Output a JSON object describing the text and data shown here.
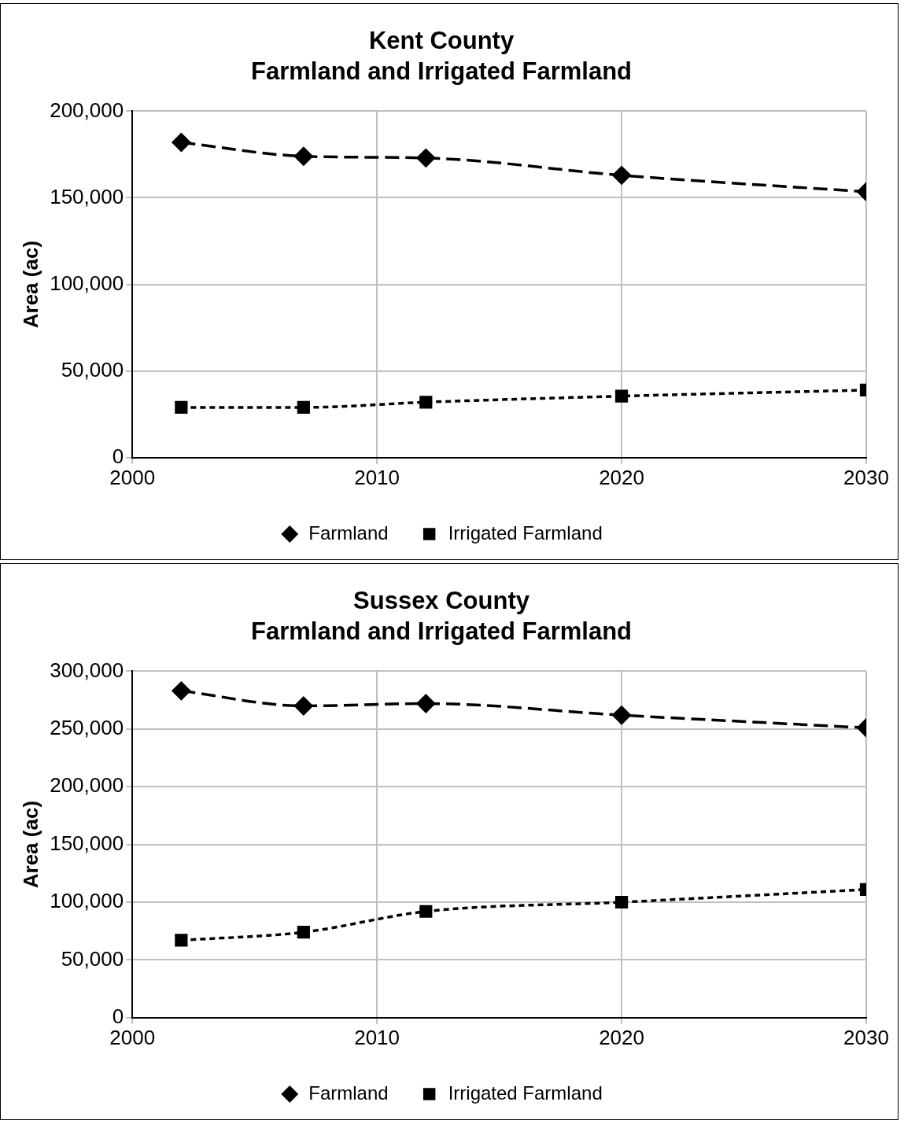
{
  "chart_data": [
    {
      "type": "line",
      "title": "Kent County",
      "subtitle": "Farmland and Irrigated Farmland",
      "ylabel": "Area (ac)",
      "x": [
        2002,
        2007,
        2012,
        2020,
        2030
      ],
      "xlim": [
        2000,
        2030
      ],
      "xticks": [
        2000,
        2010,
        2020,
        2030
      ],
      "ylim": [
        0,
        200000
      ],
      "yticks": [
        {
          "value": 0,
          "label": "0"
        },
        {
          "value": 50000,
          "label": "50,000"
        },
        {
          "value": 100000,
          "label": "100,000"
        },
        {
          "value": 150000,
          "label": "150,000"
        },
        {
          "value": 200000,
          "label": "200,000"
        }
      ],
      "grid": true,
      "legend": "bottom",
      "series": [
        {
          "name": "Farmland",
          "color": "#000000",
          "values": [
            182000,
            174000,
            173000,
            163000,
            153500
          ],
          "marker": "diamond",
          "line_style": "dashed"
        },
        {
          "name": "Irrigated Farmland",
          "color": "#000000",
          "values": [
            29000,
            29000,
            32000,
            35500,
            39000
          ],
          "marker": "square",
          "line_style": "dotted"
        }
      ]
    },
    {
      "type": "line",
      "title": "Sussex County",
      "subtitle": "Farmland and Irrigated Farmland",
      "ylabel": "Area (ac)",
      "x": [
        2002,
        2007,
        2012,
        2020,
        2030
      ],
      "xlim": [
        2000,
        2030
      ],
      "xticks": [
        2000,
        2010,
        2020,
        2030
      ],
      "ylim": [
        0,
        300000
      ],
      "yticks": [
        {
          "value": 0,
          "label": "0"
        },
        {
          "value": 50000,
          "label": "50,000"
        },
        {
          "value": 100000,
          "label": "100,000"
        },
        {
          "value": 150000,
          "label": "150,000"
        },
        {
          "value": 200000,
          "label": "200,000"
        },
        {
          "value": 250000,
          "label": "250,000"
        },
        {
          "value": 300000,
          "label": "300,000"
        }
      ],
      "grid": true,
      "legend": "bottom",
      "series": [
        {
          "name": "Farmland",
          "color": "#000000",
          "values": [
            283000,
            270000,
            272000,
            262000,
            251000
          ],
          "marker": "diamond",
          "line_style": "dashed"
        },
        {
          "name": "Irrigated Farmland",
          "color": "#000000",
          "values": [
            67000,
            74000,
            92000,
            100000,
            111000
          ],
          "marker": "square",
          "line_style": "dotted"
        }
      ]
    }
  ]
}
